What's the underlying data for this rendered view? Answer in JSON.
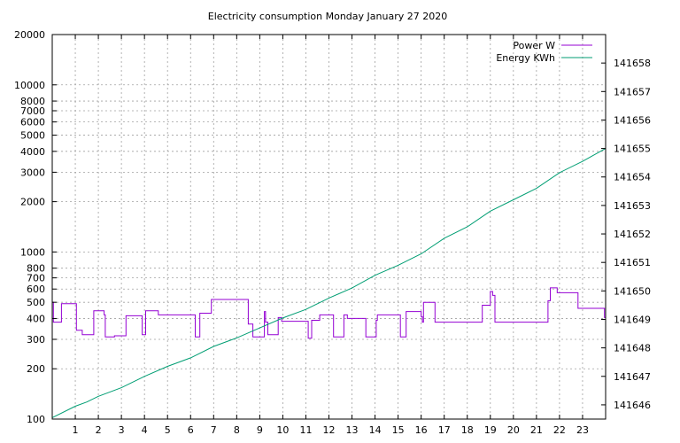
{
  "chart_data": {
    "type": "line",
    "title": "Electricity consumption Monday January 27 2020",
    "xlabel": "",
    "ylabel": "",
    "y2label": "",
    "x_ticks": [
      1,
      2,
      3,
      4,
      5,
      6,
      7,
      8,
      9,
      10,
      11,
      12,
      13,
      14,
      15,
      16,
      17,
      18,
      19,
      20,
      21,
      22,
      23
    ],
    "xlim": [
      0,
      24
    ],
    "y_scale": "log",
    "ylim": [
      100,
      20000
    ],
    "y_ticks": [
      100,
      200,
      300,
      400,
      500,
      600,
      700,
      800,
      1000,
      2000,
      3000,
      4000,
      5000,
      6000,
      7000,
      8000,
      10000,
      20000
    ],
    "y2lim": [
      141645.5,
      141659
    ],
    "y2_ticks": [
      141646,
      141647,
      141648,
      141649,
      141650,
      141651,
      141652,
      141653,
      141654,
      141655,
      141656,
      141657,
      141658
    ],
    "grid": true,
    "legend_position": "top-right",
    "series": [
      {
        "name": "Power W",
        "color": "#9400d3",
        "axis": "left",
        "step": true,
        "x": [
          0,
          0.05,
          0.1,
          0.4,
          1.0,
          1.05,
          1.3,
          1.8,
          2.2,
          2.25,
          2.3,
          2.7,
          3.2,
          3.8,
          3.9,
          4.0,
          4.05,
          4.6,
          6.2,
          6.4,
          6.9,
          8.5,
          8.7,
          9.2,
          9.25,
          9.35,
          9.8,
          9.95,
          11.1,
          11.25,
          11.6,
          12.2,
          12.65,
          12.8,
          13.6,
          14.05,
          14.1,
          15.1,
          15.35,
          16.0,
          16.05,
          16.1,
          16.6,
          18.35,
          18.65,
          19.0,
          19.1,
          19.2,
          21.3,
          21.5,
          21.6,
          21.9,
          22.8,
          23.95,
          24
        ],
        "y": [
          500,
          380,
          380,
          490,
          490,
          340,
          320,
          445,
          445,
          420,
          310,
          315,
          415,
          415,
          320,
          320,
          445,
          420,
          310,
          430,
          520,
          370,
          310,
          440,
          380,
          320,
          405,
          385,
          305,
          390,
          420,
          310,
          420,
          400,
          310,
          390,
          420,
          310,
          440,
          410,
          380,
          500,
          380,
          380,
          480,
          580,
          550,
          380,
          380,
          510,
          610,
          570,
          460,
          405,
          380
        ]
      },
      {
        "name": "Energy KWh",
        "color": "#009e73",
        "axis": "right",
        "step": false,
        "x": [
          0,
          1,
          1.5,
          2,
          3,
          4,
          5,
          6,
          7,
          8,
          9,
          10,
          11,
          12,
          13,
          14,
          15,
          16,
          17,
          18,
          19,
          20,
          21,
          22,
          23,
          24
        ],
        "y": [
          141645.55,
          141645.95,
          141646.1,
          141646.3,
          141646.6,
          141647.0,
          141647.35,
          141647.65,
          141648.05,
          141648.35,
          141648.7,
          141649.05,
          141649.35,
          141649.75,
          141650.1,
          141650.55,
          141650.9,
          141651.3,
          141651.85,
          141652.25,
          141652.8,
          141653.2,
          141653.6,
          141654.15,
          141654.55,
          141655.0
        ]
      }
    ]
  }
}
